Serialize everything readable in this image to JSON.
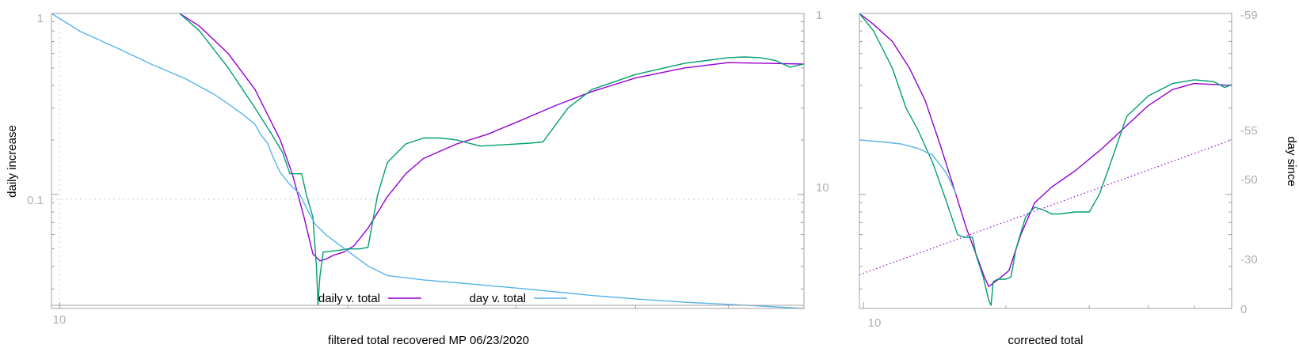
{
  "colors": {
    "daily": "#9400d3",
    "green": "#009e73",
    "day": "#56b4e9",
    "border": "#a0a0a0",
    "grid": "#c8c8c8",
    "tick_text": "#b0b0b0"
  },
  "chart_data": [
    {
      "type": "line",
      "id": "left",
      "xlabel": "filtered total recovered MP 06/23/2020",
      "ylabel": "daily increase",
      "x_scale": "log",
      "y_scale": "log",
      "xlim": [
        9.8,
        60
      ],
      "ylim": [
        0.0244,
        1
      ],
      "y2_scale": "log",
      "y2lim": [
        1,
        40
      ],
      "x_tick_labels": [
        {
          "value": 10,
          "label": "10"
        }
      ],
      "y_tick_labels": [
        {
          "value": 1,
          "label": "1"
        },
        {
          "value": 0.1,
          "label": "0.1"
        }
      ],
      "y2_tick_labels": [
        {
          "value": 1,
          "label": "1"
        },
        {
          "value": 10,
          "label": "10"
        }
      ],
      "legend": [
        {
          "label": "daily v. total",
          "series": "daily v. total"
        },
        {
          "label": "day v. total",
          "series": "day v. total"
        }
      ],
      "series": [
        {
          "name": "daily v. total",
          "axis": "y",
          "color_key": "daily",
          "x": [
            13.34,
            14.0,
            15.0,
            16.0,
            17.0,
            17.5,
            18.0,
            18.39,
            18.7,
            19.0,
            19.3,
            19.8,
            20.3,
            21.0,
            22.0,
            23.0,
            24.0,
            26.0,
            28.0,
            30.0,
            33.0,
            36.0,
            40.0,
            45.0,
            50.0,
            55.0,
            60.0
          ],
          "y": [
            1.0,
            0.85,
            0.6,
            0.38,
            0.2,
            0.13,
            0.075,
            0.047,
            0.043,
            0.044,
            0.046,
            0.048,
            0.052,
            0.065,
            0.097,
            0.13,
            0.158,
            0.19,
            0.215,
            0.25,
            0.31,
            0.37,
            0.44,
            0.5,
            0.535,
            0.53,
            0.525
          ]
        },
        {
          "name": "green",
          "axis": "y",
          "color_key": "green",
          "x": [
            13.34,
            14.0,
            15.0,
            16.0,
            16.7,
            17.1,
            17.4,
            17.9,
            18.1,
            18.39,
            18.55,
            18.62,
            18.7,
            18.85,
            19.5,
            20.0,
            20.6,
            21.0,
            21.5,
            22.0,
            23.0,
            24.0,
            25.0,
            26.0,
            27.5,
            29.0,
            31.0,
            32.0,
            34.0,
            36.0,
            40.0,
            45.0,
            50.0,
            52.0,
            54.0,
            56.0,
            58.0,
            60.0
          ],
          "y": [
            1.0,
            0.8,
            0.5,
            0.3,
            0.21,
            0.17,
            0.13,
            0.13,
            0.1,
            0.075,
            0.04,
            0.0245,
            0.035,
            0.048,
            0.049,
            0.05,
            0.05,
            0.051,
            0.1,
            0.15,
            0.19,
            0.205,
            0.205,
            0.2,
            0.185,
            0.188,
            0.192,
            0.195,
            0.3,
            0.38,
            0.46,
            0.53,
            0.57,
            0.575,
            0.57,
            0.55,
            0.505,
            0.525
          ]
        },
        {
          "name": "day v. total",
          "axis": "y2",
          "color_key": "day",
          "x": [
            9.8,
            10.5,
            11.5,
            12.5,
            13.5,
            14.5,
            15.0,
            15.5,
            16.0,
            16.2,
            16.5,
            16.7,
            17.0,
            17.4,
            17.8,
            18.2,
            18.5,
            19.0,
            20.0,
            21.0,
            22.0,
            24.0,
            26.0,
            28.0,
            30.0,
            33.0,
            36.0,
            40.0,
            45.0,
            50.0,
            55.0,
            60.0
          ],
          "y": [
            1.0,
            1.25,
            1.55,
            1.9,
            2.25,
            2.75,
            3.1,
            3.5,
            4.0,
            4.5,
            5.1,
            6.0,
            7.3,
            8.5,
            9.5,
            12.0,
            14.0,
            16.0,
            19.5,
            23.5,
            26.5,
            28.0,
            29.0,
            30.0,
            31.0,
            32.5,
            34.0,
            35.5,
            37.0,
            38.0,
            39.0,
            40.0
          ]
        }
      ]
    },
    {
      "type": "line",
      "id": "right",
      "xlabel": "corrected total",
      "ylabel": "day since",
      "x_scale": "log",
      "xlim": [
        9.8,
        60
      ],
      "y_scale": "log",
      "ylim": [
        0.0244,
        1
      ],
      "y2lim": [
        0,
        -59
      ],
      "x_tick_labels": [
        {
          "value": 10,
          "label": "10"
        }
      ],
      "y2_tick_labels": [
        {
          "value": -59,
          "label": "-59"
        },
        {
          "value": -55,
          "label": "-55"
        },
        {
          "value": -50,
          "label": "-50"
        },
        {
          "value": -30,
          "label": "-30"
        },
        {
          "value": 0,
          "label": "0"
        }
      ],
      "series": [
        {
          "name": "daily v. total",
          "axis": "y",
          "color_key": "daily",
          "x": [
            9.8,
            10.5,
            11.5,
            12.5,
            13.5,
            14.5,
            15.5,
            16.5,
            17.5,
            18.0,
            18.39,
            18.7,
            19.3,
            20.3,
            21.5,
            23.0,
            25.0,
            28.0,
            32.0,
            36.0,
            40.0,
            45.0,
            50.0,
            55.0,
            60.0
          ],
          "y": [
            1.0,
            0.87,
            0.7,
            0.5,
            0.33,
            0.19,
            0.11,
            0.065,
            0.043,
            0.035,
            0.031,
            0.032,
            0.034,
            0.038,
            0.06,
            0.09,
            0.11,
            0.135,
            0.18,
            0.24,
            0.31,
            0.38,
            0.41,
            0.405,
            0.4
          ]
        },
        {
          "name": "green",
          "axis": "y",
          "color_key": "green",
          "x": [
            9.8,
            10.5,
            11.5,
            12.3,
            13.0,
            14.0,
            15.0,
            15.8,
            16.3,
            17.0,
            17.3,
            17.9,
            18.39,
            18.6,
            18.8,
            19.2,
            20.0,
            20.5,
            21.0,
            22.0,
            23.0,
            24.0,
            25.0,
            26.0,
            28.0,
            30.0,
            31.5,
            33.0,
            36.0,
            40.0,
            45.0,
            50.0,
            55.0,
            58.0,
            60.0
          ],
          "y": [
            1.0,
            0.8,
            0.5,
            0.3,
            0.23,
            0.15,
            0.09,
            0.06,
            0.058,
            0.058,
            0.046,
            0.035,
            0.026,
            0.0244,
            0.033,
            0.034,
            0.034,
            0.035,
            0.05,
            0.075,
            0.085,
            0.082,
            0.078,
            0.078,
            0.08,
            0.08,
            0.1,
            0.14,
            0.27,
            0.35,
            0.41,
            0.43,
            0.42,
            0.39,
            0.405
          ]
        },
        {
          "name": "day v. total",
          "axis": "y",
          "color_key": "day",
          "x": [
            9.8,
            11.0,
            12.0,
            13.0,
            14.0,
            15.0,
            15.7
          ],
          "y": [
            0.2,
            0.195,
            0.19,
            0.18,
            0.165,
            0.13,
            0.1
          ]
        },
        {
          "name": "trend",
          "axis": "y",
          "color_key": "daily",
          "dotted": true,
          "x": [
            9.8,
            60.0
          ],
          "y": [
            0.036,
            0.2
          ]
        }
      ]
    }
  ]
}
